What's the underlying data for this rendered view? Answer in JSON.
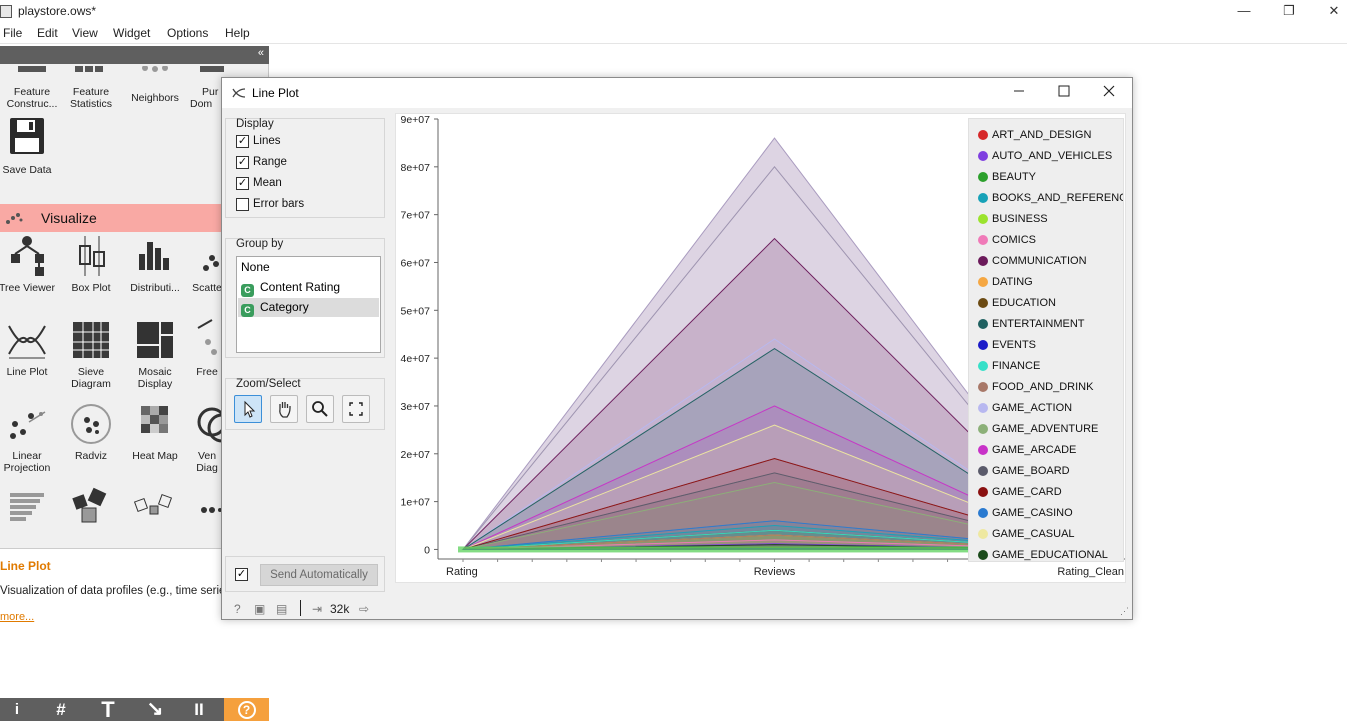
{
  "window": {
    "title": "playstore.ows*",
    "controls": [
      "—",
      "❐",
      "✕"
    ]
  },
  "menu": [
    "File",
    "Edit",
    "View",
    "Widget",
    "Options",
    "Help"
  ],
  "panel": {
    "top_widgets": [
      {
        "label": "Feature Construc...",
        "icon": "feature-constructor-icon"
      },
      {
        "label": "Feature Statistics",
        "icon": "feature-statistics-icon"
      },
      {
        "label": "Neighbors",
        "icon": "neighbors-icon"
      },
      {
        "label": "Pur Dom",
        "icon": "purge-domain-icon"
      }
    ],
    "save_data": {
      "label": "Save Data",
      "icon": "save-icon"
    },
    "category": "Visualize",
    "vis_widgets": [
      {
        "label": "Tree Viewer",
        "icon": "tree-viewer-icon"
      },
      {
        "label": "Box Plot",
        "icon": "box-plot-icon"
      },
      {
        "label": "Distributi...",
        "icon": "distributions-icon"
      },
      {
        "label": "Scatte",
        "icon": "scatter-plot-icon"
      },
      {
        "label": "Line Plot",
        "icon": "line-plot-icon"
      },
      {
        "label": "Sieve Diagram",
        "icon": "sieve-diagram-icon"
      },
      {
        "label": "Mosaic Display",
        "icon": "mosaic-display-icon"
      },
      {
        "label": "Free",
        "icon": "freeviz-icon"
      },
      {
        "label": "Linear Projection",
        "icon": "linear-projection-icon"
      },
      {
        "label": "Radviz",
        "icon": "radviz-icon"
      },
      {
        "label": "Heat Map",
        "icon": "heat-map-icon"
      },
      {
        "label": "Ven Diag",
        "icon": "venn-diagram-icon"
      }
    ],
    "help": {
      "title": "Line Plot",
      "description": "Visualization of data profiles (e.g., time series).",
      "more": "more..."
    },
    "toolbar": [
      "i",
      "#",
      "T",
      "↘",
      "II",
      "?"
    ]
  },
  "lineplot": {
    "title": "Line Plot",
    "display": {
      "title": "Display",
      "options": [
        {
          "label": "Lines",
          "checked": true
        },
        {
          "label": "Range",
          "checked": true
        },
        {
          "label": "Mean",
          "checked": true
        },
        {
          "label": "Error bars",
          "checked": false
        }
      ]
    },
    "group_by": {
      "title": "Group by",
      "items": [
        {
          "label": "None",
          "badge": ""
        },
        {
          "label": "Content Rating",
          "badge": "C"
        },
        {
          "label": "Category",
          "badge": "C",
          "selected": true
        }
      ]
    },
    "zoom": {
      "title": "Zoom/Select",
      "tools": [
        "select-pointer-icon",
        "pan-hand-icon",
        "zoom-magnifier-icon",
        "reset-zoom-icon"
      ]
    },
    "send": {
      "label": "Send Automatically",
      "checked": true
    },
    "status": {
      "count": "32k"
    }
  },
  "chart_data": {
    "type": "line",
    "categories": [
      "Rating",
      "Reviews",
      "Rating_Clean"
    ],
    "yticks": [
      "0",
      "1e+07",
      "2e+07",
      "3e+07",
      "4e+07",
      "5e+07",
      "6e+07",
      "7e+07",
      "8e+07",
      "9e+07"
    ],
    "ylim": [
      -2000000,
      90000000
    ],
    "series": [
      {
        "name": "ART_AND_DESIGN",
        "color": "#d62728",
        "values": [
          4.3,
          300000,
          4.3
        ]
      },
      {
        "name": "AUTO_AND_VEHICLES",
        "color": "#7f3fe0",
        "values": [
          4.2,
          1200000,
          4.2
        ]
      },
      {
        "name": "BEAUTY",
        "color": "#2ca02c",
        "values": [
          4.3,
          500000,
          4.3
        ]
      },
      {
        "name": "BOOKS_AND_REFERENCE",
        "color": "#17a2b8",
        "values": [
          4.3,
          5000000,
          4.3
        ]
      },
      {
        "name": "BUSINESS",
        "color": "#9be32d",
        "values": [
          4.1,
          3000000,
          4.1
        ]
      },
      {
        "name": "COMICS",
        "color": "#f07ab8",
        "values": [
          4.2,
          2000000,
          4.2
        ]
      },
      {
        "name": "COMMUNICATION",
        "color": "#6b1a5a",
        "values": [
          4.2,
          65000000,
          4.2
        ]
      },
      {
        "name": "DATING",
        "color": "#f5a742",
        "values": [
          4.0,
          3000000,
          4.0
        ]
      },
      {
        "name": "EDUCATION",
        "color": "#6b4a12",
        "values": [
          4.4,
          4000000,
          4.4
        ]
      },
      {
        "name": "ENTERTAINMENT",
        "color": "#1f6060",
        "values": [
          4.1,
          42000000,
          4.1
        ]
      },
      {
        "name": "EVENTS",
        "color": "#1a1ac8",
        "values": [
          4.4,
          200000,
          4.4
        ]
      },
      {
        "name": "FINANCE",
        "color": "#36e0c8",
        "values": [
          4.1,
          4000000,
          4.1
        ]
      },
      {
        "name": "FOOD_AND_DRINK",
        "color": "#a87868",
        "values": [
          4.2,
          3000000,
          4.2
        ]
      },
      {
        "name": "GAME_ACTION",
        "color": "#b8b8f0",
        "values": [
          4.3,
          44000000,
          4.3
        ]
      },
      {
        "name": "GAME_ADVENTURE",
        "color": "#8cb078",
        "values": [
          4.2,
          14000000,
          4.2
        ]
      },
      {
        "name": "GAME_ARCADE",
        "color": "#c832c8",
        "values": [
          4.3,
          30000000,
          4.3
        ]
      },
      {
        "name": "GAME_BOARD",
        "color": "#5a5a6a",
        "values": [
          4.3,
          16000000,
          4.3
        ]
      },
      {
        "name": "GAME_CARD",
        "color": "#8a1010",
        "values": [
          4.3,
          19000000,
          4.3
        ]
      },
      {
        "name": "GAME_CASINO",
        "color": "#2a7ad0",
        "values": [
          4.3,
          6000000,
          4.3
        ]
      },
      {
        "name": "GAME_CASUAL",
        "color": "#eee8a0",
        "values": [
          4.3,
          26000000,
          4.3
        ]
      },
      {
        "name": "GAME_EDUCATIONAL",
        "color": "#1a4a1a",
        "values": [
          4.3,
          1000000,
          4.3
        ]
      }
    ],
    "envelope": {
      "max_values": [
        5,
        86000000,
        5
      ],
      "secondary_max": [
        5,
        80000000,
        5
      ]
    }
  }
}
